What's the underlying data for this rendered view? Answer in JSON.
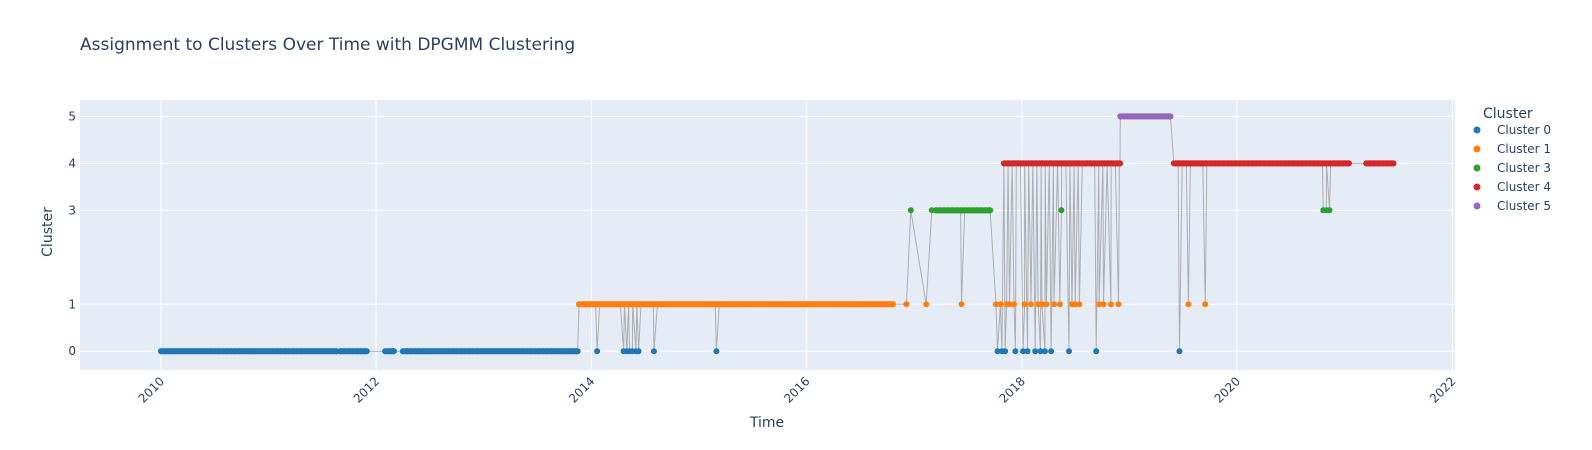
{
  "chart_data": {
    "type": "scatter",
    "title": "Assignment to Clusters Over Time with DPGMM Clustering",
    "xlabel": "Time",
    "ylabel": "Cluster",
    "x_ticks": [
      "2010",
      "2012",
      "2014",
      "2016",
      "2018",
      "2020",
      "2022"
    ],
    "y_ticks": [
      0,
      1,
      3,
      4,
      5
    ],
    "xlim": [
      "2009-04-01",
      "2022-01-10"
    ],
    "ylim": [
      -0.4,
      5.35
    ],
    "grid": true,
    "legend": {
      "title": "Cluster",
      "position": "right"
    },
    "connector_line_color": "#999999",
    "series": [
      {
        "name": "Cluster 0",
        "color": "#1f77b4",
        "segments": [
          [
            "2010-01-01",
            "2011-08-20"
          ],
          [
            "2011-09-01",
            "2011-11-30"
          ],
          [
            "2012-02-01",
            "2012-03-01"
          ],
          [
            "2012-04-01",
            "2013-11-15"
          ]
        ],
        "points": [
          "2014-01-20",
          "2014-04-20",
          "2014-05-01",
          "2014-05-10",
          "2014-05-20",
          "2014-06-01",
          "2014-06-10",
          "2014-08-01",
          "2015-03-01",
          "2017-10-10",
          "2017-10-25",
          "2017-11-05",
          "2017-12-10",
          "2018-01-05",
          "2018-01-20",
          "2018-02-15",
          "2018-03-05",
          "2018-03-20",
          "2018-04-10",
          "2018-06-10",
          "2018-09-10",
          "2019-06-20"
        ]
      },
      {
        "name": "Cluster 1",
        "color": "#ff7f0e",
        "segments": [
          [
            "2013-11-20",
            "2016-10-20"
          ]
        ],
        "points": [
          "2016-12-05",
          "2017-02-10",
          "2017-06-10",
          "2017-10-05",
          "2017-10-20",
          "2017-11-10",
          "2017-11-20",
          "2017-12-05",
          "2018-01-10",
          "2018-02-01",
          "2018-02-25",
          "2018-03-10",
          "2018-03-25",
          "2018-04-20",
          "2018-05-10",
          "2018-06-20",
          "2018-07-01",
          "2018-07-15",
          "2018-09-20",
          "2018-10-05",
          "2018-10-30",
          "2018-11-25",
          "2019-07-20",
          "2019-09-15"
        ]
      },
      {
        "name": "Cluster 3",
        "color": "#2ca02c",
        "segments": [
          [
            "2017-03-15",
            "2017-09-15"
          ]
        ],
        "points": [
          "2016-12-20",
          "2017-03-01",
          "2018-05-15",
          "2020-10-20",
          "2020-10-30",
          "2020-11-10"
        ]
      },
      {
        "name": "Cluster 4",
        "color": "#d62728",
        "segments": [
          [
            "2017-11-01",
            "2018-11-30"
          ],
          [
            "2019-06-01",
            "2021-01-15"
          ],
          [
            "2021-03-15",
            "2021-06-15"
          ]
        ],
        "points": []
      },
      {
        "name": "Cluster 5",
        "color": "#9467bd",
        "segments": [
          [
            "2018-12-01",
            "2019-05-20"
          ]
        ],
        "points": []
      }
    ]
  }
}
